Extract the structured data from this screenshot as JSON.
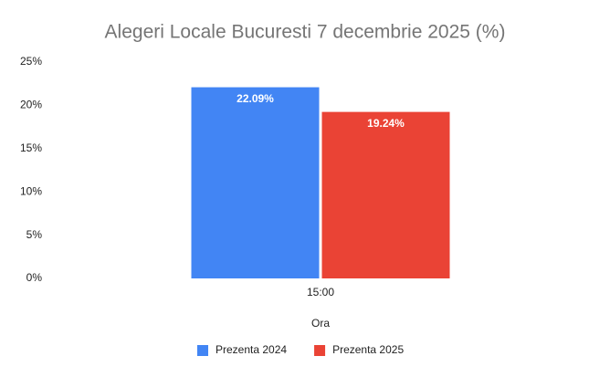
{
  "chart_data": {
    "type": "bar",
    "title": "Alegeri Locale Bucuresti 7 decembrie 2025 (%)",
    "x_label": "Ora",
    "categories": [
      "15:00"
    ],
    "series": [
      {
        "name": "Prezenta 2024",
        "color": "#4285f4",
        "values": [
          22.09
        ],
        "value_labels": [
          "22.09%"
        ]
      },
      {
        "name": "Prezenta 2025",
        "color": "#ea4335",
        "values": [
          19.24
        ],
        "value_labels": [
          "19.24%"
        ]
      }
    ],
    "ylim": [
      0,
      25
    ],
    "yticks": [
      {
        "value": 0,
        "label": "0%"
      },
      {
        "value": 5,
        "label": "5%"
      },
      {
        "value": 10,
        "label": "10%"
      },
      {
        "value": 15,
        "label": "15%"
      },
      {
        "value": 20,
        "label": "20%"
      },
      {
        "value": 25,
        "label": "25%"
      }
    ],
    "grid": false,
    "legend": "bottom"
  }
}
